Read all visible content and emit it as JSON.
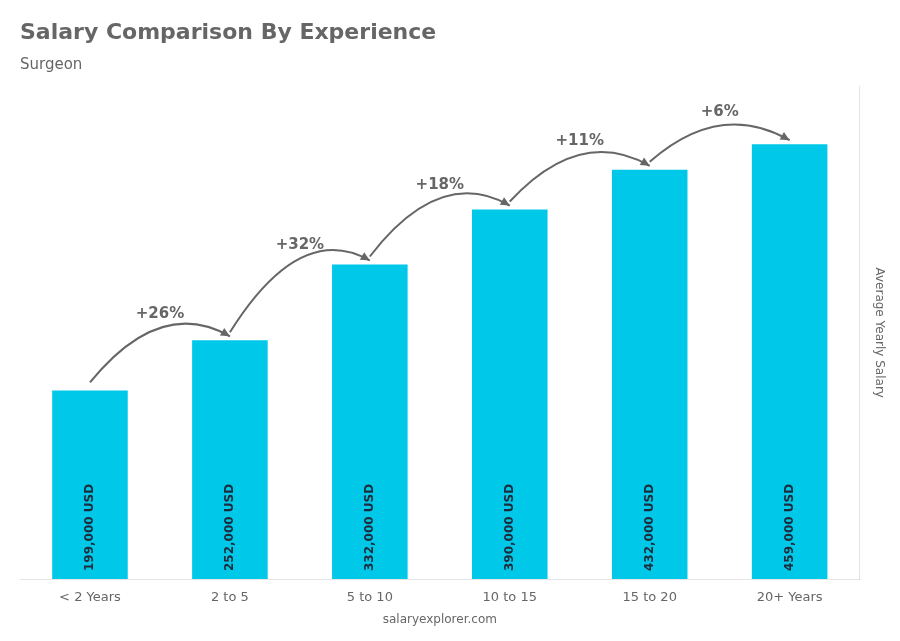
{
  "chart_data": {
    "type": "bar",
    "title": "Salary Comparison By Experience",
    "subtitle": "Surgeon",
    "xlabel": "salaryexplorer.com",
    "ylabel": "Average Yearly Salary",
    "categories": [
      "< 2 Years",
      "2 to 5",
      "5 to 10",
      "10 to 15",
      "15 to 20",
      "20+ Years"
    ],
    "values": [
      199000,
      252000,
      332000,
      390000,
      432000,
      459000
    ],
    "value_labels": [
      "199,000 USD",
      "252,000 USD",
      "332,000 USD",
      "390,000 USD",
      "432,000 USD",
      "459,000 USD"
    ],
    "data_labels": true,
    "annotations": [
      "+26%",
      "+32%",
      "+18%",
      "+11%",
      "+6%"
    ],
    "color": "#00c8e8",
    "ylim": [
      0,
      520000
    ],
    "tick_labels": "x",
    "grid": false
  }
}
